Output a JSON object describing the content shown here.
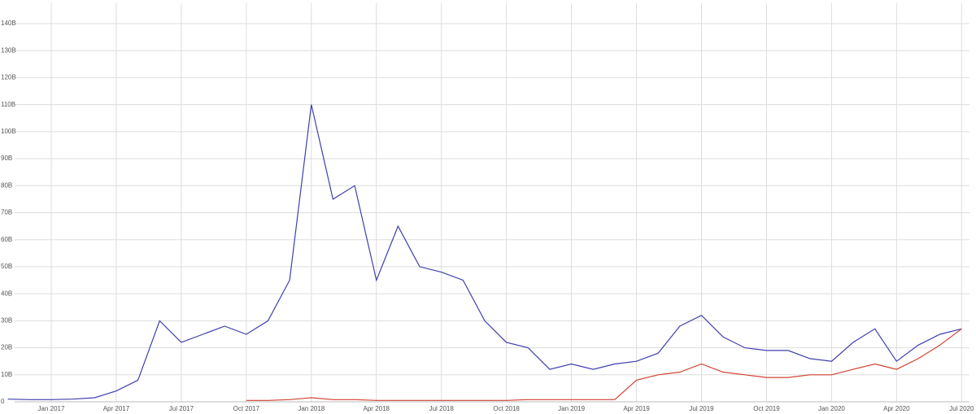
{
  "chart_data": {
    "type": "line",
    "x": [
      "2016-11",
      "2016-12",
      "2017-01",
      "2017-02",
      "2017-03",
      "2017-04",
      "2017-05",
      "2017-06",
      "2017-07",
      "2017-08",
      "2017-09",
      "2017-10",
      "2017-11",
      "2017-12",
      "2018-01",
      "2018-02",
      "2018-03",
      "2018-04",
      "2018-05",
      "2018-06",
      "2018-07",
      "2018-08",
      "2018-09",
      "2018-10",
      "2018-11",
      "2018-12",
      "2019-01",
      "2019-02",
      "2019-03",
      "2019-04",
      "2019-05",
      "2019-06",
      "2019-07",
      "2019-08",
      "2019-09",
      "2019-10",
      "2019-11",
      "2019-12",
      "2020-01",
      "2020-02",
      "2020-03",
      "2020-04",
      "2020-05",
      "2020-06",
      "2020-07"
    ],
    "series": [
      {
        "color": "#3f3fb0",
        "values": [
          1,
          0.8,
          0.8,
          1,
          1.5,
          4,
          8,
          30,
          22,
          25,
          28,
          25,
          30,
          45,
          110,
          75,
          80,
          45,
          65,
          50,
          48,
          45,
          30,
          22,
          20,
          12,
          14,
          12,
          14,
          15,
          18,
          28,
          32,
          24,
          20,
          19,
          19,
          16,
          15,
          22,
          27,
          15,
          21,
          25,
          27
        ]
      },
      {
        "color": "#d04232",
        "values": [
          null,
          null,
          null,
          null,
          null,
          null,
          null,
          null,
          null,
          null,
          null,
          0.5,
          0.5,
          0.8,
          1.5,
          0.8,
          0.8,
          0.5,
          0.5,
          0.5,
          0.5,
          0.5,
          0.5,
          0.5,
          0.8,
          0.8,
          0.8,
          0.8,
          0.8,
          8,
          10,
          11,
          14,
          11,
          10,
          9,
          9,
          10,
          10,
          12,
          14,
          12,
          16,
          21,
          27
        ]
      }
    ],
    "ylim": [
      0,
      140
    ],
    "yticks": [
      0,
      {
        "value": 10,
        "label": "10B"
      },
      {
        "value": 20,
        "label": "20B"
      },
      {
        "value": 30,
        "label": "30B"
      },
      {
        "value": 40,
        "label": "40B"
      },
      {
        "value": 50,
        "label": "50B"
      },
      {
        "value": 60,
        "label": "60B"
      },
      {
        "value": 70,
        "label": "70B"
      },
      {
        "value": 80,
        "label": "80B"
      },
      {
        "value": 90,
        "label": "90B"
      },
      {
        "value": 100,
        "label": "100B"
      },
      {
        "value": 110,
        "label": "110B"
      },
      {
        "value": 120,
        "label": "120B"
      },
      {
        "value": 130,
        "label": "130B"
      },
      {
        "value": 140,
        "label": "140B"
      }
    ],
    "xticks": [
      {
        "value": "2017-01",
        "label": "Jan 2017"
      },
      {
        "value": "2017-04",
        "label": "Apr 2017"
      },
      {
        "value": "2017-07",
        "label": "Jul 2017"
      },
      {
        "value": "2017-10",
        "label": "Oct 2017"
      },
      {
        "value": "2018-01",
        "label": "Jan 2018"
      },
      {
        "value": "2018-04",
        "label": "Apr 2018"
      },
      {
        "value": "2018-07",
        "label": "Jul 2018"
      },
      {
        "value": "2018-10",
        "label": "Oct 2018"
      },
      {
        "value": "2019-01",
        "label": "Jan 2019"
      },
      {
        "value": "2019-04",
        "label": "Apr 2019"
      },
      {
        "value": "2019-07",
        "label": "Jul 2019"
      },
      {
        "value": "2019-10",
        "label": "Oct 2019"
      },
      {
        "value": "2020-01",
        "label": "Jan 2020"
      },
      {
        "value": "2020-04",
        "label": "Apr 2020"
      },
      {
        "value": "2020-07",
        "label": "Jul 2020"
      }
    ],
    "grid": true
  }
}
